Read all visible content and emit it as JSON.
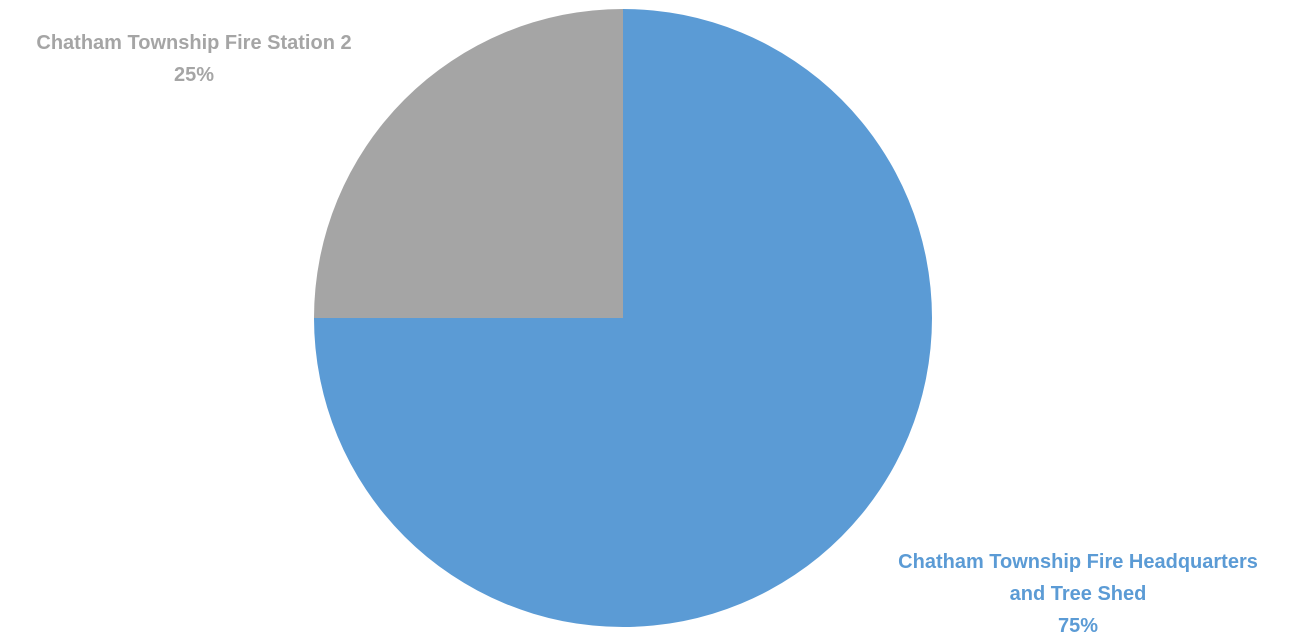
{
  "chart_data": {
    "type": "pie",
    "title": "",
    "slices": [
      {
        "label_lines": [
          "Chatham Township Fire Headquarters",
          "and Tree Shed"
        ],
        "percent_label": "75%",
        "value": 75,
        "color": "#5B9BD5"
      },
      {
        "label_lines": [
          "Chatham Township Fire Station 2"
        ],
        "percent_label": "25%",
        "value": 25,
        "color": "#A5A5A5"
      }
    ],
    "legend": "none",
    "data_labels": "outside-end with category name and percentage"
  }
}
